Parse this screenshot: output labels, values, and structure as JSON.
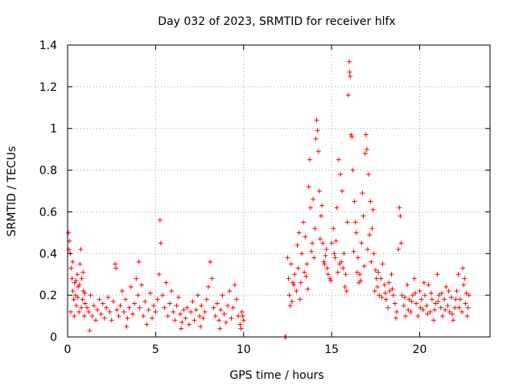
{
  "chart_data": {
    "type": "scatter",
    "title": "Day 032 of 2023, SRMTID for receiver hlfx",
    "xlabel": "GPS time / hours",
    "ylabel": "SRMTID / TECUs",
    "xlim": [
      0,
      24
    ],
    "ylim": [
      0,
      1.4
    ],
    "xticks": [
      0,
      5,
      10,
      15,
      20
    ],
    "xtick_labels": [
      "0",
      "5",
      "10",
      "15",
      "20"
    ],
    "yticks": [
      0,
      0.2,
      0.4,
      0.6,
      0.8,
      1.0,
      1.2,
      1.4
    ],
    "ytick_labels": [
      "0",
      "0.2",
      "0.4",
      "0.6",
      "0.8",
      "1",
      "1.2",
      "1.4"
    ],
    "grid": true,
    "marker": "+",
    "color": "#ff0000",
    "series": [
      {
        "name": "SRMTID",
        "points": [
          [
            0.05,
            0.5
          ],
          [
            0.1,
            0.46
          ],
          [
            0.15,
            0.4
          ],
          [
            0.2,
            0.33
          ],
          [
            0.25,
            0.28
          ],
          [
            0.3,
            0.22
          ],
          [
            0.35,
            0.18
          ],
          [
            0.4,
            0.26
          ],
          [
            0.45,
            0.2
          ],
          [
            0.5,
            0.15
          ],
          [
            0.55,
            0.3
          ],
          [
            0.6,
            0.24
          ],
          [
            0.65,
            0.12
          ],
          [
            0.7,
            0.35
          ],
          [
            0.75,
            0.42
          ],
          [
            0.8,
            0.28
          ],
          [
            0.85,
            0.18
          ],
          [
            0.9,
            0.22
          ],
          [
            0.95,
            0.1
          ],
          [
            1.0,
            0.16
          ],
          [
            0.08,
            0.42
          ],
          [
            0.18,
            0.12
          ],
          [
            0.28,
            0.36
          ],
          [
            0.38,
            0.1
          ],
          [
            0.48,
            0.27
          ],
          [
            0.58,
            0.19
          ],
          [
            0.68,
            0.25
          ],
          [
            0.78,
            0.14
          ],
          [
            0.88,
            0.31
          ],
          [
            0.98,
            0.21
          ],
          [
            1.1,
            0.14
          ],
          [
            1.2,
            0.12
          ],
          [
            1.3,
            0.2
          ],
          [
            1.4,
            0.1
          ],
          [
            1.5,
            0.15
          ],
          [
            1.6,
            0.08
          ],
          [
            1.7,
            0.13
          ],
          [
            1.8,
            0.18
          ],
          [
            1.9,
            0.11
          ],
          [
            2.0,
            0.16
          ],
          [
            2.1,
            0.09
          ],
          [
            2.2,
            0.14
          ],
          [
            2.3,
            0.19
          ],
          [
            2.4,
            0.12
          ],
          [
            2.5,
            0.08
          ],
          [
            2.6,
            0.17
          ],
          [
            2.7,
            0.35
          ],
          [
            2.75,
            0.33
          ],
          [
            2.8,
            0.13
          ],
          [
            2.9,
            0.1
          ],
          [
            3.0,
            0.15
          ],
          [
            3.1,
            0.22
          ],
          [
            3.2,
            0.12
          ],
          [
            3.3,
            0.18
          ],
          [
            3.4,
            0.09
          ],
          [
            3.5,
            0.14
          ],
          [
            3.6,
            0.24
          ],
          [
            3.7,
            0.11
          ],
          [
            3.8,
            0.16
          ],
          [
            3.9,
            0.28
          ],
          [
            4.0,
            0.2
          ],
          [
            4.05,
            0.36
          ],
          [
            4.1,
            0.14
          ],
          [
            4.2,
            0.25
          ],
          [
            4.3,
            0.1
          ],
          [
            4.4,
            0.17
          ],
          [
            4.5,
            0.06
          ],
          [
            4.6,
            0.13
          ],
          [
            4.7,
            0.21
          ],
          [
            4.8,
            0.09
          ],
          [
            4.9,
            0.15
          ],
          [
            5.0,
            0.12
          ],
          [
            5.1,
            0.18
          ],
          [
            5.2,
            0.3
          ],
          [
            5.25,
            0.56
          ],
          [
            5.3,
            0.45
          ],
          [
            5.4,
            0.2
          ],
          [
            5.5,
            0.14
          ],
          [
            5.6,
            0.26
          ],
          [
            5.7,
            0.1
          ],
          [
            5.8,
            0.16
          ],
          [
            5.9,
            0.22
          ],
          [
            6.0,
            0.12
          ],
          [
            6.1,
            0.08
          ],
          [
            6.2,
            0.15
          ],
          [
            6.3,
            0.19
          ],
          [
            6.4,
            0.11
          ],
          [
            6.5,
            0.07
          ],
          [
            6.6,
            0.13
          ],
          [
            6.7,
            0.09
          ],
          [
            6.8,
            0.14
          ],
          [
            6.9,
            0.06
          ],
          [
            7.0,
            0.12
          ],
          [
            7.1,
            0.17
          ],
          [
            7.2,
            0.08
          ],
          [
            7.3,
            0.13
          ],
          [
            7.4,
            0.2
          ],
          [
            7.5,
            0.1
          ],
          [
            7.6,
            0.15
          ],
          [
            7.7,
            0.09
          ],
          [
            7.8,
            0.12
          ],
          [
            7.9,
            0.18
          ],
          [
            8.0,
            0.24
          ],
          [
            8.1,
            0.36
          ],
          [
            8.2,
            0.28
          ],
          [
            8.3,
            0.14
          ],
          [
            8.4,
            0.1
          ],
          [
            8.5,
            0.16
          ],
          [
            8.6,
            0.08
          ],
          [
            8.7,
            0.13
          ],
          [
            8.8,
            0.2
          ],
          [
            8.9,
            0.11
          ],
          [
            9.0,
            0.07
          ],
          [
            9.1,
            0.15
          ],
          [
            9.2,
            0.22
          ],
          [
            9.3,
            0.09
          ],
          [
            9.4,
            0.14
          ],
          [
            9.5,
            0.25
          ],
          [
            9.6,
            0.18
          ],
          [
            9.7,
            0.1
          ],
          [
            9.8,
            0.06
          ],
          [
            9.9,
            0.12
          ],
          [
            10.0,
            0.08
          ],
          [
            9.85,
            0.04
          ],
          [
            9.95,
            0.1
          ],
          [
            1.25,
            0.03
          ],
          [
            3.35,
            0.05
          ],
          [
            6.45,
            0.04
          ],
          [
            7.55,
            0.05
          ],
          [
            8.65,
            0.04
          ],
          [
            12.35,
            0.0
          ],
          [
            12.4,
            0.0
          ],
          [
            12.5,
            0.38
          ],
          [
            12.55,
            0.28
          ],
          [
            12.6,
            0.2
          ],
          [
            12.65,
            0.15
          ],
          [
            12.7,
            0.35
          ],
          [
            12.8,
            0.26
          ],
          [
            12.9,
            0.3
          ],
          [
            13.0,
            0.22
          ],
          [
            13.1,
            0.33
          ],
          [
            13.2,
            0.18
          ],
          [
            13.3,
            0.4
          ],
          [
            13.4,
            0.55
          ],
          [
            13.5,
            0.48
          ],
          [
            13.6,
            0.35
          ],
          [
            13.7,
            0.72
          ],
          [
            13.75,
            0.85
          ],
          [
            13.8,
            0.62
          ],
          [
            13.9,
            0.45
          ],
          [
            14.0,
            0.38
          ],
          [
            14.05,
            0.52
          ],
          [
            14.1,
            0.95
          ],
          [
            14.15,
            1.04
          ],
          [
            14.2,
            0.99
          ],
          [
            14.25,
            0.89
          ],
          [
            14.3,
            0.7
          ],
          [
            14.4,
            0.58
          ],
          [
            14.5,
            0.45
          ],
          [
            14.6,
            0.35
          ],
          [
            14.7,
            0.42
          ],
          [
            14.8,
            0.3
          ],
          [
            14.9,
            0.28
          ],
          [
            15.0,
            0.45
          ],
          [
            15.1,
            0.52
          ],
          [
            15.2,
            0.38
          ],
          [
            15.3,
            0.62
          ],
          [
            15.4,
            0.85
          ],
          [
            15.5,
            0.78
          ],
          [
            15.6,
            0.7
          ],
          [
            15.7,
            0.4
          ],
          [
            15.8,
            0.3
          ],
          [
            15.85,
            0.22
          ],
          [
            15.9,
            0.55
          ],
          [
            15.95,
            1.16
          ],
          [
            16.0,
            1.32
          ],
          [
            16.02,
            1.27
          ],
          [
            16.05,
            1.25
          ],
          [
            16.1,
            0.97
          ],
          [
            16.15,
            0.96
          ],
          [
            16.2,
            0.8
          ],
          [
            16.3,
            0.65
          ],
          [
            16.4,
            0.5
          ],
          [
            16.5,
            0.38
          ],
          [
            16.6,
            0.3
          ],
          [
            16.7,
            0.45
          ],
          [
            16.8,
            0.58
          ],
          [
            16.9,
            0.88
          ],
          [
            16.95,
            0.97
          ],
          [
            17.0,
            0.9
          ],
          [
            17.1,
            0.78
          ],
          [
            17.2,
            0.65
          ],
          [
            17.3,
            0.52
          ],
          [
            17.4,
            0.4
          ],
          [
            17.5,
            0.32
          ],
          [
            17.6,
            0.24
          ],
          [
            17.7,
            0.2
          ],
          [
            17.8,
            0.28
          ],
          [
            17.9,
            0.35
          ],
          [
            18.0,
            0.25
          ],
          [
            18.1,
            0.18
          ],
          [
            18.2,
            0.14
          ],
          [
            18.3,
            0.22
          ],
          [
            18.4,
            0.3
          ],
          [
            18.5,
            0.2
          ],
          [
            18.6,
            0.16
          ],
          [
            18.7,
            0.12
          ],
          [
            18.8,
            0.42
          ],
          [
            18.85,
            0.62
          ],
          [
            18.9,
            0.58
          ],
          [
            18.95,
            0.45
          ],
          [
            19.0,
            0.2
          ],
          [
            19.1,
            0.15
          ],
          [
            19.2,
            0.1
          ],
          [
            19.3,
            0.25
          ],
          [
            19.4,
            0.18
          ],
          [
            19.5,
            0.12
          ],
          [
            19.6,
            0.2
          ],
          [
            19.7,
            0.28
          ],
          [
            19.8,
            0.16
          ],
          [
            19.9,
            0.1
          ],
          [
            20.0,
            0.22
          ],
          [
            20.1,
            0.18
          ],
          [
            20.2,
            0.13
          ],
          [
            20.3,
            0.2
          ],
          [
            20.4,
            0.15
          ],
          [
            20.5,
            0.25
          ],
          [
            20.6,
            0.12
          ],
          [
            20.7,
            0.18
          ],
          [
            20.8,
            0.08
          ],
          [
            20.9,
            0.16
          ],
          [
            21.0,
            0.3
          ],
          [
            21.1,
            0.2
          ],
          [
            21.2,
            0.14
          ],
          [
            21.3,
            0.1
          ],
          [
            21.4,
            0.18
          ],
          [
            21.5,
            0.24
          ],
          [
            21.6,
            0.15
          ],
          [
            21.7,
            0.12
          ],
          [
            21.8,
            0.19
          ],
          [
            21.9,
            0.08
          ],
          [
            22.0,
            0.14
          ],
          [
            22.1,
            0.22
          ],
          [
            22.2,
            0.3
          ],
          [
            22.3,
            0.18
          ],
          [
            22.4,
            0.12
          ],
          [
            22.5,
            0.25
          ],
          [
            22.6,
            0.16
          ],
          [
            22.7,
            0.1
          ],
          [
            22.8,
            0.2
          ],
          [
            22.45,
            0.33
          ],
          [
            22.55,
            0.28
          ],
          [
            13.05,
            0.44
          ],
          [
            13.25,
            0.26
          ],
          [
            13.45,
            0.31
          ],
          [
            13.65,
            0.23
          ],
          [
            13.85,
            0.41
          ],
          [
            14.35,
            0.47
          ],
          [
            14.55,
            0.36
          ],
          [
            14.75,
            0.33
          ],
          [
            14.95,
            0.27
          ],
          [
            15.15,
            0.4
          ],
          [
            15.35,
            0.31
          ],
          [
            15.55,
            0.36
          ],
          [
            15.75,
            0.24
          ],
          [
            16.25,
            0.41
          ],
          [
            16.45,
            0.31
          ],
          [
            16.65,
            0.27
          ],
          [
            16.85,
            0.34
          ],
          [
            17.05,
            0.42
          ],
          [
            17.25,
            0.36
          ],
          [
            17.45,
            0.22
          ],
          [
            17.65,
            0.31
          ],
          [
            17.85,
            0.19
          ],
          [
            18.05,
            0.21
          ],
          [
            18.25,
            0.26
          ],
          [
            18.45,
            0.23
          ],
          [
            18.65,
            0.09
          ],
          [
            19.15,
            0.19
          ],
          [
            19.35,
            0.13
          ],
          [
            19.55,
            0.17
          ],
          [
            19.75,
            0.21
          ],
          [
            20.05,
            0.14
          ],
          [
            20.25,
            0.26
          ],
          [
            20.45,
            0.11
          ],
          [
            20.65,
            0.21
          ],
          [
            20.85,
            0.13
          ],
          [
            21.05,
            0.17
          ],
          [
            21.25,
            0.21
          ],
          [
            21.45,
            0.13
          ],
          [
            21.65,
            0.22
          ],
          [
            21.85,
            0.11
          ],
          [
            22.05,
            0.18
          ],
          [
            22.25,
            0.14
          ],
          [
            22.65,
            0.21
          ],
          [
            22.75,
            0.14
          ],
          [
            13.15,
            0.5
          ],
          [
            13.95,
            0.66
          ],
          [
            14.45,
            0.63
          ],
          [
            15.25,
            0.46
          ],
          [
            16.35,
            0.55
          ],
          [
            16.75,
            0.69
          ],
          [
            17.15,
            0.49
          ],
          [
            17.35,
            0.61
          ],
          [
            12.75,
            0.17
          ],
          [
            12.85,
            0.25
          ],
          [
            13.55,
            0.29
          ],
          [
            14.65,
            0.39
          ],
          [
            15.45,
            0.35
          ],
          [
            15.65,
            0.33
          ],
          [
            16.55,
            0.26
          ],
          [
            17.55,
            0.28
          ]
        ]
      }
    ]
  }
}
